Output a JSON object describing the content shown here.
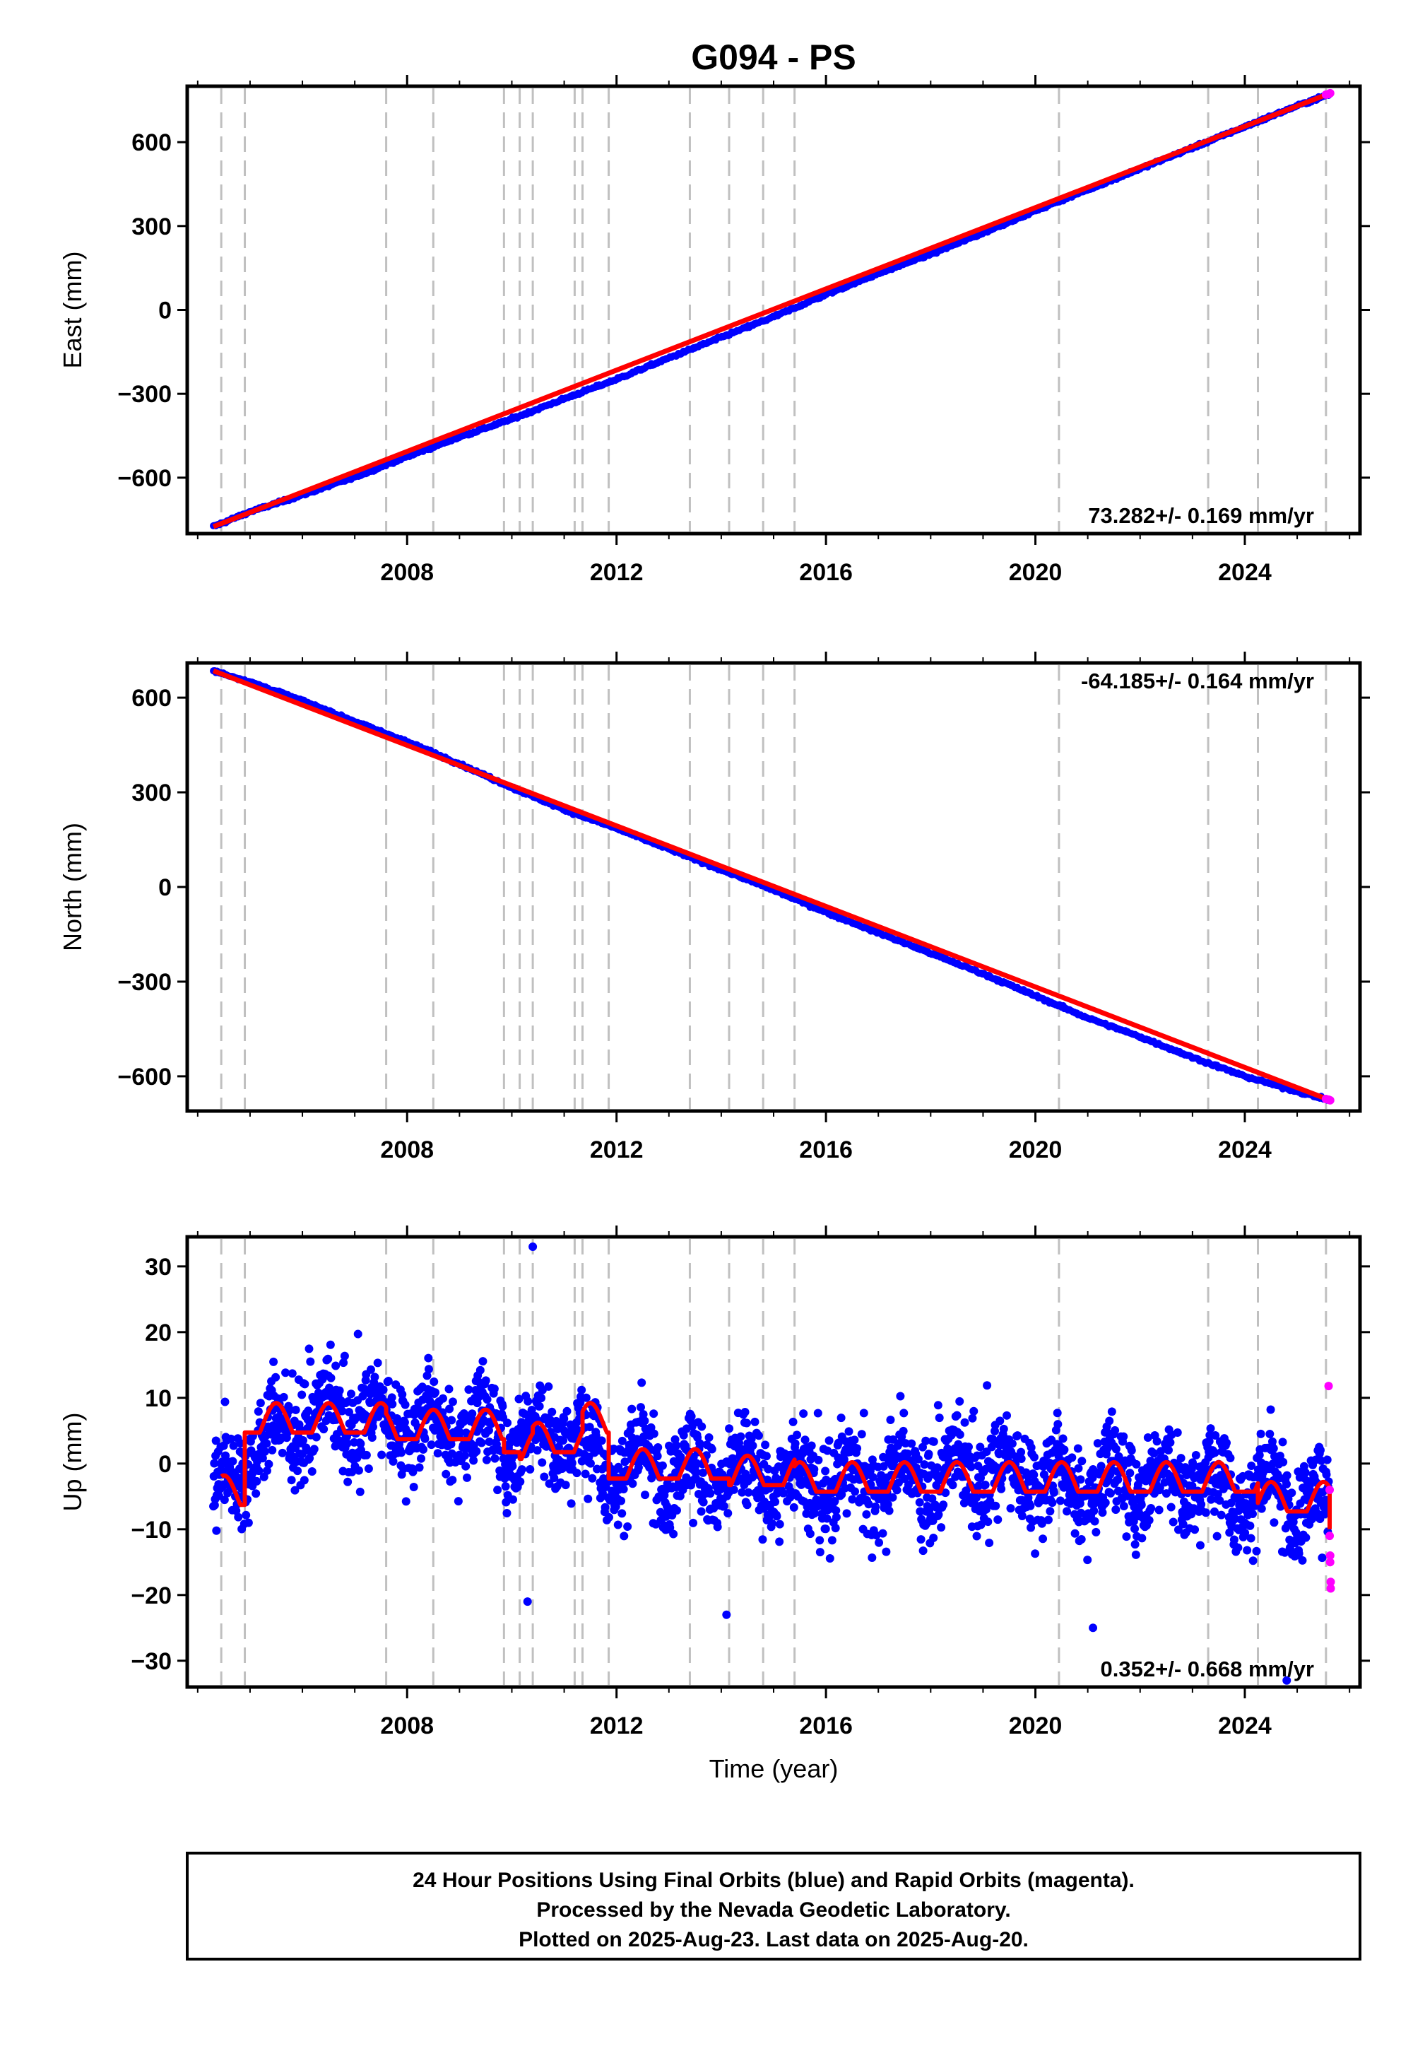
{
  "figure": {
    "title": "G094 - PS",
    "xlabel": "Time (year)",
    "caption_lines": [
      "24 Hour Positions Using Final Orbits (blue) and Rapid Orbits (magenta).",
      "Processed by the Nevada Geodetic Laboratory.",
      "Plotted on 2025-Aug-23. Last data on 2025-Aug-20."
    ],
    "colors": {
      "final_orbits": "#0000ff",
      "rapid_orbits": "#ff00ff",
      "model_fit": "#ff0000",
      "event_lines": "#c0c0c0"
    }
  },
  "chart_data": [
    {
      "type": "scatter",
      "panel": "east",
      "ylabel": "East (mm)",
      "rate_label": "73.282+/- 0.169 mm/yr",
      "xlim": [
        2003.8,
        2026.2
      ],
      "ylim": [
        -800,
        800
      ],
      "yticks": [
        -600,
        -300,
        0,
        300,
        600
      ],
      "xticks": [
        2008,
        2012,
        2016,
        2020,
        2024
      ],
      "grid": false,
      "event_lines_x": [
        2004.45,
        2004.9,
        2007.6,
        2008.5,
        2009.85,
        2010.15,
        2010.4,
        2011.2,
        2011.35,
        2011.85,
        2013.4,
        2014.15,
        2014.8,
        2015.4,
        2020.45,
        2023.3,
        2024.25,
        2025.55
      ],
      "series": [
        {
          "name": "Final Orbits",
          "color": "#0000ff",
          "x": [
            2004.3,
            2005,
            2006,
            2007,
            2008,
            2009,
            2010,
            2011,
            2012,
            2013,
            2014,
            2015,
            2016,
            2017,
            2018,
            2019,
            2020,
            2021,
            2022,
            2023,
            2024,
            2025,
            2025.6
          ],
          "y": [
            -775,
            -722,
            -662,
            -598,
            -525,
            -455,
            -390,
            -318,
            -248,
            -172,
            -98,
            -25,
            55,
            130,
            200,
            275,
            355,
            430,
            505,
            580,
            655,
            730,
            770
          ]
        },
        {
          "name": "Rapid Orbits",
          "color": "#ff00ff",
          "x": [
            2025.55,
            2025.6,
            2025.63
          ],
          "y": [
            770,
            772,
            775
          ]
        },
        {
          "name": "Model",
          "color": "#ff0000",
          "x": [
            2004.3,
            2025.63
          ],
          "y": [
            -775,
            775
          ]
        }
      ]
    },
    {
      "type": "scatter",
      "panel": "north",
      "ylabel": "North (mm)",
      "rate_label": "-64.185+/- 0.164 mm/yr",
      "xlim": [
        2003.8,
        2026.2
      ],
      "ylim": [
        -710,
        710
      ],
      "yticks": [
        -600,
        -300,
        0,
        300,
        600
      ],
      "xticks": [
        2008,
        2012,
        2016,
        2020,
        2024
      ],
      "grid": false,
      "event_lines_x": [
        2004.45,
        2004.9,
        2007.6,
        2008.5,
        2009.85,
        2010.15,
        2010.4,
        2011.2,
        2011.35,
        2011.85,
        2013.4,
        2014.15,
        2014.8,
        2015.4,
        2020.45,
        2023.3,
        2024.25,
        2025.55
      ],
      "series": [
        {
          "name": "Final Orbits",
          "color": "#0000ff",
          "x": [
            2004.3,
            2005,
            2006,
            2007,
            2008,
            2009,
            2010,
            2011,
            2012,
            2013,
            2014,
            2015,
            2016,
            2017,
            2018,
            2019,
            2020,
            2021,
            2022,
            2023,
            2024,
            2025,
            2025.6
          ],
          "y": [
            685,
            650,
            590,
            525,
            460,
            390,
            315,
            245,
            185,
            120,
            55,
            -10,
            -80,
            -145,
            -210,
            -275,
            -345,
            -415,
            -475,
            -540,
            -600,
            -648,
            -675
          ]
        },
        {
          "name": "Rapid Orbits",
          "color": "#ff00ff",
          "x": [
            2025.55,
            2025.6,
            2025.63
          ],
          "y": [
            -672,
            -674,
            -676
          ]
        },
        {
          "name": "Model",
          "color": "#ff0000",
          "x": [
            2004.3,
            2025.63
          ],
          "y": [
            685,
            -676
          ]
        }
      ]
    },
    {
      "type": "scatter",
      "panel": "up",
      "ylabel": "Up (mm)",
      "rate_label": "0.352+/- 0.668 mm/yr",
      "xlim": [
        2003.8,
        2026.2
      ],
      "ylim": [
        -34,
        34.5
      ],
      "yticks": [
        -30,
        -20,
        -10,
        0,
        10,
        20,
        30
      ],
      "xticks": [
        2008,
        2012,
        2016,
        2020,
        2024
      ],
      "grid": false,
      "event_lines_x": [
        2004.45,
        2004.9,
        2007.6,
        2008.5,
        2009.85,
        2010.15,
        2010.4,
        2011.2,
        2011.35,
        2011.85,
        2013.4,
        2014.15,
        2014.8,
        2015.4,
        2020.45,
        2023.3,
        2024.25,
        2025.55
      ],
      "series": [
        {
          "name": "Final Orbits",
          "color": "#0000ff",
          "spread_mm": 5,
          "x": [
            2004.3,
            2005,
            2006,
            2007,
            2008,
            2009,
            2010,
            2011,
            2012,
            2013,
            2014,
            2015,
            2016,
            2017,
            2018,
            2019,
            2020,
            2021,
            2022,
            2023,
            2024,
            2025,
            2025.6
          ],
          "y": [
            -6,
            2,
            7,
            7,
            6,
            6,
            4,
            5,
            0,
            -2,
            -1,
            -2,
            -3,
            -2,
            -2,
            -1,
            -2,
            -3,
            -2,
            -2,
            -4,
            -6,
            -7
          ]
        },
        {
          "name": "Rapid Orbits",
          "color": "#ff00ff",
          "x": [
            2025.6,
            2025.62,
            2025.62,
            2025.63,
            2025.63,
            2025.64,
            2025.64
          ],
          "y": [
            11.8,
            -4,
            -11,
            -14,
            -15,
            -18,
            -19
          ]
        },
        {
          "name": "Model",
          "color": "#ff0000",
          "x": [
            2004.45,
            2004.9,
            2007.6,
            2008.5,
            2009.85,
            2010.15,
            2010.4,
            2011.2,
            2011.35,
            2011.85,
            2013.4,
            2014.15,
            2014.8,
            2015.4,
            2020.45,
            2023.3,
            2024.25,
            2025.55
          ],
          "offsets": [
            -5,
            6,
            5,
            5,
            3,
            2,
            3,
            3,
            6,
            -1,
            -1,
            -2,
            -2,
            -3,
            -3,
            -3,
            -6,
            -6
          ],
          "seasonal_amplitude_mm": 3.2
        }
      ]
    }
  ]
}
